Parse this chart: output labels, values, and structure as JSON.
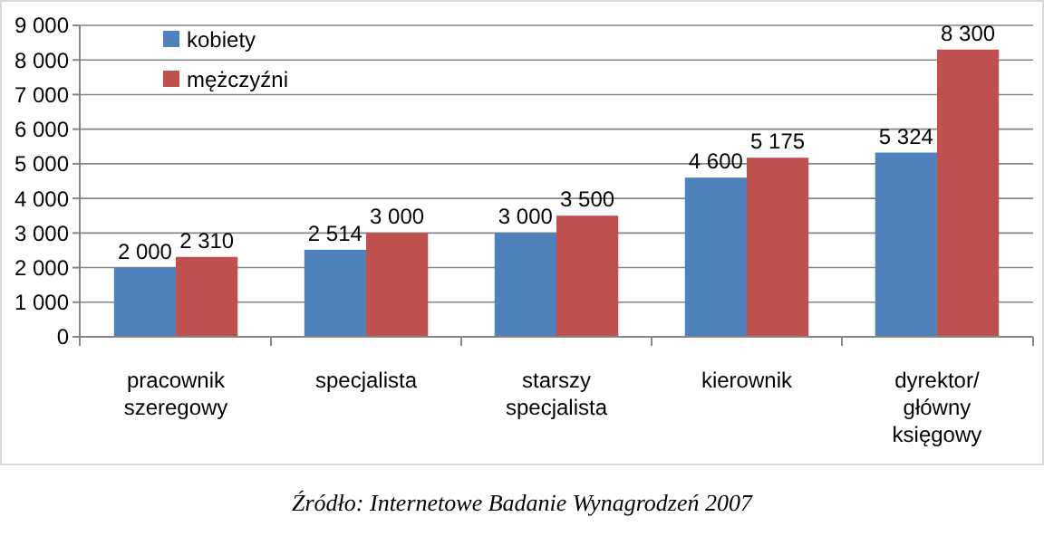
{
  "chart_data": {
    "type": "bar",
    "categories": [
      "pracownik szeregowy",
      "specjalista",
      "starszy specjalista",
      "kierownik",
      "dyrektor/ główny księgowy"
    ],
    "series": [
      {
        "name": "kobiety",
        "color": "#4f81bd",
        "values": [
          2000,
          2514,
          3000,
          4600,
          5324
        ],
        "value_labels": [
          "2 000",
          "2 514",
          "3 000",
          "4 600",
          "5 324"
        ]
      },
      {
        "name": "mężczyźni",
        "color": "#c0504d",
        "values": [
          2310,
          3000,
          3500,
          5175,
          8300
        ],
        "value_labels": [
          "2 310",
          "3 000",
          "3 500",
          "5 175",
          "8 300"
        ]
      }
    ],
    "ylim": [
      0,
      9000
    ],
    "yticks": [
      0,
      {
        "value": 1000,
        "label": "1 000"
      },
      {
        "value": 2000,
        "label": "2 000"
      },
      {
        "value": 3000,
        "label": "3 000"
      },
      {
        "value": 4000,
        "label": "4 000"
      },
      {
        "value": 5000,
        "label": "5 000"
      },
      {
        "value": 6000,
        "label": "6 000"
      },
      {
        "value": 7000,
        "label": "7 000"
      },
      {
        "value": 8000,
        "label": "8 000"
      },
      {
        "value": 9000,
        "label": "9 000"
      }
    ],
    "grid": "y",
    "legend": "top left",
    "annotations": [
      "Źródło: Internetowe Badanie Wynagrodzeń 2007"
    ]
  }
}
